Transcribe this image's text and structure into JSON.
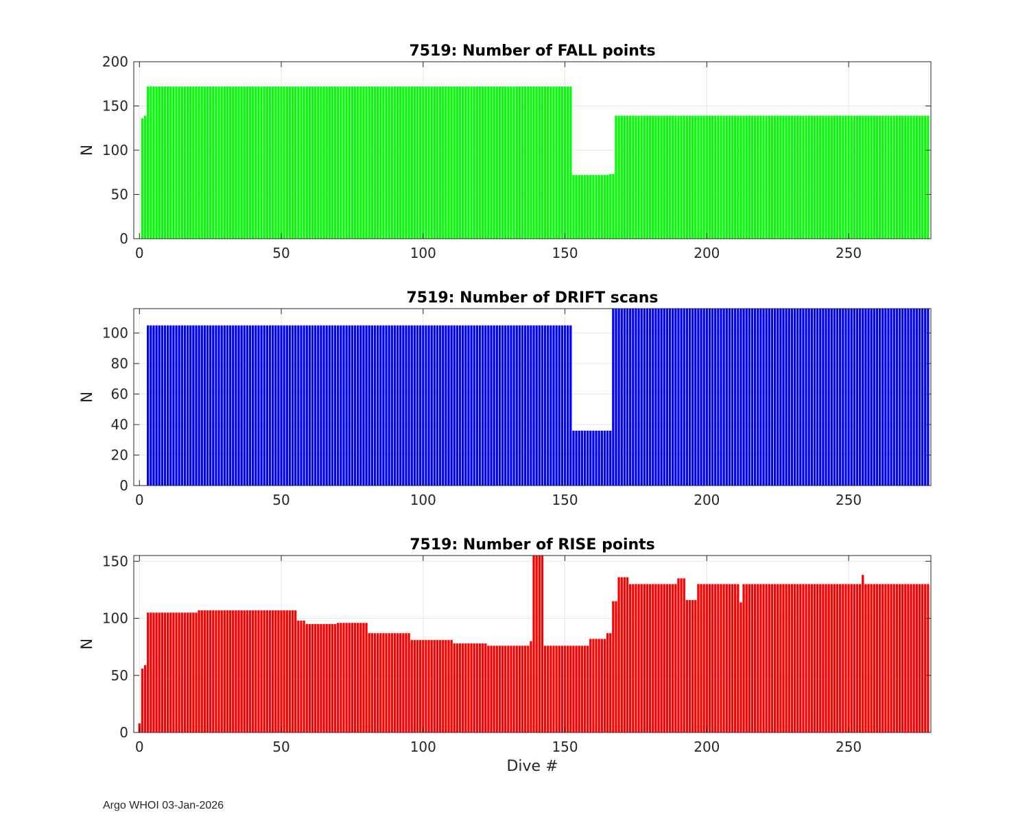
{
  "footer": "Argo WHOI 03-Jan-2026",
  "chart_data": [
    {
      "type": "bar",
      "title": "7519: Number of FALL points",
      "xlabel": "",
      "ylabel": "N",
      "xlim": [
        -2,
        279
      ],
      "ylim": [
        0,
        200
      ],
      "xticks": [
        0,
        50,
        100,
        150,
        200,
        250
      ],
      "yticks": [
        0,
        50,
        100,
        150,
        200
      ],
      "color": "#00ff00",
      "grid": true,
      "segments": [
        {
          "from": 1,
          "to": 1,
          "value": 136
        },
        {
          "from": 2,
          "to": 2,
          "value": 139
        },
        {
          "from": 3,
          "to": 152,
          "value": 172
        },
        {
          "from": 153,
          "to": 165,
          "value": 72
        },
        {
          "from": 166,
          "to": 167,
          "value": 73
        },
        {
          "from": 168,
          "to": 278,
          "value": 139
        }
      ]
    },
    {
      "type": "bar",
      "title": "7519: Number of DRIFT scans",
      "xlabel": "",
      "ylabel": "N",
      "xlim": [
        -2,
        279
      ],
      "ylim": [
        0,
        116
      ],
      "xticks": [
        0,
        50,
        100,
        150,
        200,
        250
      ],
      "yticks": [
        0,
        20,
        40,
        60,
        80,
        100
      ],
      "color": "#0000ff",
      "grid": true,
      "segments": [
        {
          "from": 3,
          "to": 152,
          "value": 105
        },
        {
          "from": 153,
          "to": 166,
          "value": 36
        },
        {
          "from": 167,
          "to": 278,
          "value": 116
        }
      ]
    },
    {
      "type": "bar",
      "title": "7519: Number of RISE points",
      "xlabel": "Dive #",
      "ylabel": "N",
      "xlim": [
        -2,
        279
      ],
      "ylim": [
        0,
        155
      ],
      "xticks": [
        0,
        50,
        100,
        150,
        200,
        250
      ],
      "yticks": [
        0,
        50,
        100,
        150
      ],
      "color": "#ff0000",
      "grid": true,
      "segments": [
        {
          "from": 0,
          "to": 0,
          "value": 8
        },
        {
          "from": 1,
          "to": 1,
          "value": 56
        },
        {
          "from": 2,
          "to": 2,
          "value": 59
        },
        {
          "from": 3,
          "to": 20,
          "value": 105
        },
        {
          "from": 21,
          "to": 55,
          "value": 107
        },
        {
          "from": 56,
          "to": 58,
          "value": 98
        },
        {
          "from": 59,
          "to": 69,
          "value": 95
        },
        {
          "from": 70,
          "to": 80,
          "value": 96
        },
        {
          "from": 81,
          "to": 95,
          "value": 87
        },
        {
          "from": 96,
          "to": 110,
          "value": 81
        },
        {
          "from": 111,
          "to": 122,
          "value": 78
        },
        {
          "from": 123,
          "to": 137,
          "value": 76
        },
        {
          "from": 138,
          "to": 138,
          "value": 80
        },
        {
          "from": 139,
          "to": 142,
          "value": 155
        },
        {
          "from": 143,
          "to": 151,
          "value": 76
        },
        {
          "from": 152,
          "to": 158,
          "value": 76
        },
        {
          "from": 159,
          "to": 164,
          "value": 82
        },
        {
          "from": 165,
          "to": 166,
          "value": 87
        },
        {
          "from": 167,
          "to": 168,
          "value": 115
        },
        {
          "from": 169,
          "to": 172,
          "value": 136
        },
        {
          "from": 173,
          "to": 189,
          "value": 130
        },
        {
          "from": 190,
          "to": 192,
          "value": 135
        },
        {
          "from": 193,
          "to": 196,
          "value": 116
        },
        {
          "from": 197,
          "to": 211,
          "value": 130
        },
        {
          "from": 212,
          "to": 212,
          "value": 114
        },
        {
          "from": 213,
          "to": 254,
          "value": 130
        },
        {
          "from": 255,
          "to": 255,
          "value": 138
        },
        {
          "from": 256,
          "to": 278,
          "value": 130
        }
      ]
    }
  ]
}
